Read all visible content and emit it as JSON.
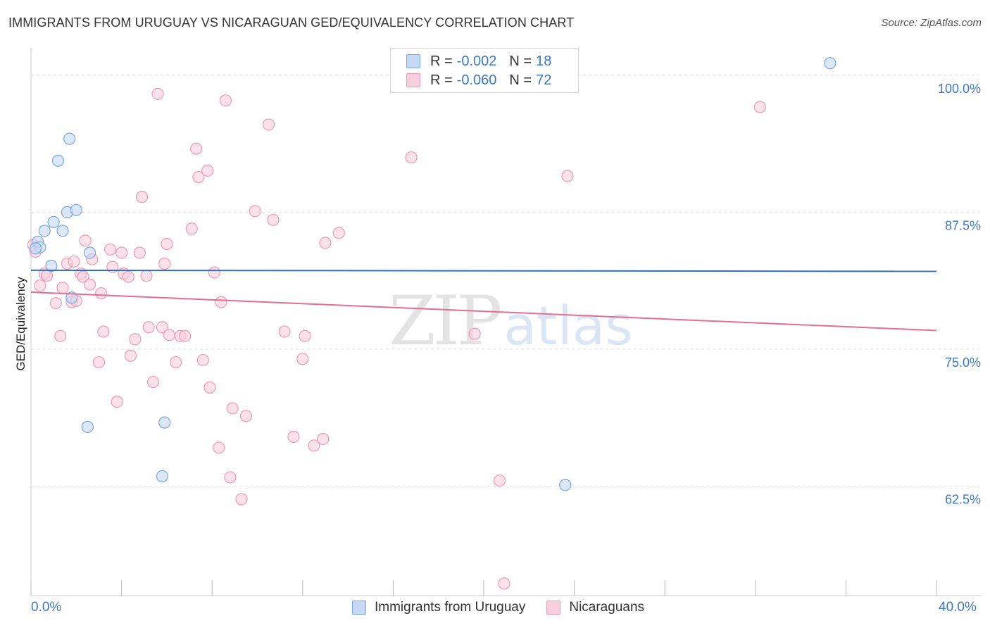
{
  "header": {
    "title": "IMMIGRANTS FROM URUGUAY VS NICARAGUAN GED/EQUIVALENCY CORRELATION CHART",
    "source": "Source: ZipAtlas.com"
  },
  "watermark": {
    "zip": "ZIP",
    "atlas": "atlas"
  },
  "legend": {
    "series1": {
      "r_label": "R = ",
      "r_value": "-0.002",
      "n_label": "N = ",
      "n_value": "18"
    },
    "series2": {
      "r_label": "R = ",
      "r_value": "-0.060",
      "n_label": "N = ",
      "n_value": "72"
    }
  },
  "colors": {
    "uruguay_fill": "#c5d9f4",
    "uruguay_stroke": "#7aa6de",
    "uruguay_line": "#2e6fc8",
    "nicaragua_fill": "#f8cfdc",
    "nicaragua_stroke": "#ee9ab5",
    "nicaragua_line": "#e46d97",
    "axis_text": "#3a78c8",
    "grid": "#dddddd"
  },
  "chart_data": {
    "type": "scatter",
    "title": "IMMIGRANTS FROM URUGUAY VS NICARAGUAN GED/EQUIVALENCY CORRELATION CHART",
    "xlabel": "",
    "ylabel": "GED/Equivalency",
    "xlim": [
      0,
      40
    ],
    "ylim": [
      52.5,
      102.5
    ],
    "x_tick_labels": [
      "0.0%",
      "40.0%"
    ],
    "y_ticks": [
      62.5,
      75.0,
      87.5,
      100.0
    ],
    "y_tick_labels": [
      "62.5%",
      "75.0%",
      "87.5%",
      "100.0%"
    ],
    "grid": true,
    "legend_placement": "top-center",
    "series": [
      {
        "name": "Immigrants from Uruguay",
        "r": -0.002,
        "n": 18,
        "trend": [
          [
            0,
            82.2
          ],
          [
            40,
            82.1
          ]
        ],
        "points": [
          [
            0.3,
            84.8
          ],
          [
            0.4,
            84.3
          ],
          [
            0.6,
            85.8
          ],
          [
            0.9,
            82.6
          ],
          [
            1.0,
            86.6
          ],
          [
            1.2,
            92.2
          ],
          [
            1.4,
            85.8
          ],
          [
            1.6,
            87.5
          ],
          [
            1.7,
            94.2
          ],
          [
            2.0,
            87.7
          ],
          [
            1.8,
            79.7
          ],
          [
            2.6,
            83.8
          ],
          [
            2.5,
            67.9
          ],
          [
            5.9,
            68.3
          ],
          [
            5.8,
            63.4
          ],
          [
            23.6,
            62.6
          ],
          [
            35.3,
            101.1
          ],
          [
            0.2,
            84.2
          ]
        ]
      },
      {
        "name": "Nicaraguans",
        "r": -0.06,
        "n": 72,
        "trend": [
          [
            0,
            80.2
          ],
          [
            40,
            76.7
          ]
        ],
        "points": [
          [
            0.1,
            84.5
          ],
          [
            0.2,
            83.9
          ],
          [
            0.4,
            80.8
          ],
          [
            0.6,
            81.9
          ],
          [
            0.7,
            81.7
          ],
          [
            1.1,
            79.2
          ],
          [
            1.3,
            76.2
          ],
          [
            1.4,
            80.6
          ],
          [
            1.6,
            82.8
          ],
          [
            1.8,
            79.3
          ],
          [
            1.9,
            83.0
          ],
          [
            2.0,
            79.4
          ],
          [
            2.2,
            81.9
          ],
          [
            2.3,
            81.6
          ],
          [
            2.4,
            84.9
          ],
          [
            2.6,
            80.9
          ],
          [
            2.7,
            83.2
          ],
          [
            3.1,
            80.1
          ],
          [
            3.0,
            73.8
          ],
          [
            3.2,
            76.6
          ],
          [
            3.5,
            84.1
          ],
          [
            3.6,
            82.5
          ],
          [
            3.8,
            70.2
          ],
          [
            4.0,
            83.8
          ],
          [
            4.1,
            81.9
          ],
          [
            4.3,
            81.6
          ],
          [
            4.4,
            74.4
          ],
          [
            4.6,
            75.9
          ],
          [
            4.8,
            83.8
          ],
          [
            4.9,
            88.9
          ],
          [
            5.1,
            81.7
          ],
          [
            5.2,
            77.0
          ],
          [
            5.4,
            72.0
          ],
          [
            5.6,
            98.3
          ],
          [
            5.8,
            77.0
          ],
          [
            5.9,
            82.8
          ],
          [
            6.0,
            84.6
          ],
          [
            6.1,
            76.3
          ],
          [
            6.4,
            73.8
          ],
          [
            6.6,
            76.2
          ],
          [
            6.8,
            76.2
          ],
          [
            7.1,
            86.0
          ],
          [
            7.3,
            93.3
          ],
          [
            7.4,
            90.7
          ],
          [
            7.6,
            74.0
          ],
          [
            7.8,
            91.3
          ],
          [
            7.9,
            71.5
          ],
          [
            8.1,
            82.0
          ],
          [
            8.3,
            66.0
          ],
          [
            8.4,
            79.3
          ],
          [
            8.6,
            97.7
          ],
          [
            8.8,
            63.3
          ],
          [
            8.9,
            69.6
          ],
          [
            9.3,
            61.3
          ],
          [
            9.5,
            68.9
          ],
          [
            9.9,
            87.6
          ],
          [
            10.5,
            95.5
          ],
          [
            10.7,
            86.8
          ],
          [
            11.2,
            76.6
          ],
          [
            11.6,
            67.0
          ],
          [
            12.0,
            74.1
          ],
          [
            12.1,
            76.2
          ],
          [
            12.5,
            66.2
          ],
          [
            12.9,
            66.8
          ],
          [
            13.0,
            84.7
          ],
          [
            13.6,
            85.6
          ],
          [
            16.8,
            92.5
          ],
          [
            19.6,
            76.4
          ],
          [
            20.7,
            63.0
          ],
          [
            20.9,
            53.6
          ],
          [
            23.7,
            90.8
          ],
          [
            32.2,
            97.1
          ]
        ]
      }
    ]
  }
}
